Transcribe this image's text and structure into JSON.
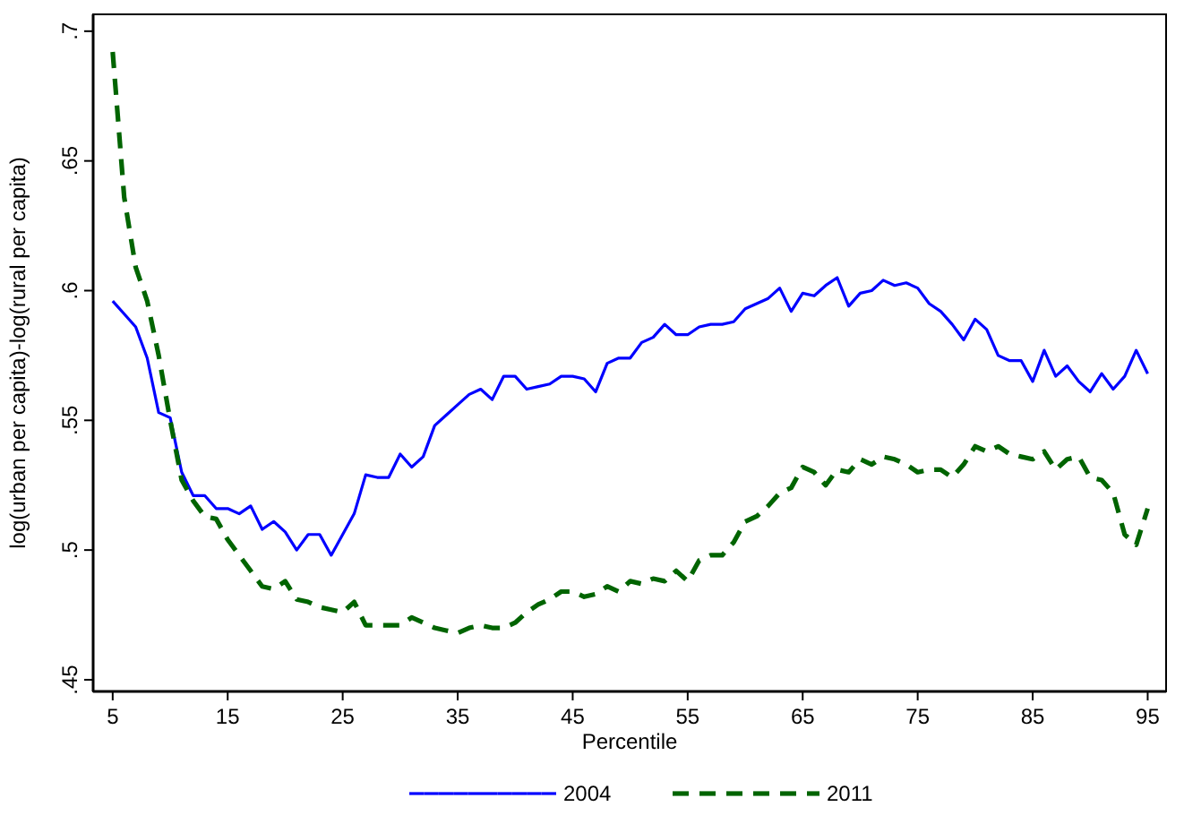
{
  "chart_data": {
    "type": "line",
    "xlabel": "Percentile",
    "ylabel": "log(urban per capita)-log(rural per capita)",
    "x": [
      5,
      6,
      7,
      8,
      9,
      10,
      11,
      12,
      13,
      14,
      15,
      16,
      17,
      18,
      19,
      20,
      21,
      22,
      23,
      24,
      25,
      26,
      27,
      28,
      29,
      30,
      31,
      32,
      33,
      34,
      35,
      36,
      37,
      38,
      39,
      40,
      41,
      42,
      43,
      44,
      45,
      46,
      47,
      48,
      49,
      50,
      51,
      52,
      53,
      54,
      55,
      56,
      57,
      58,
      59,
      60,
      61,
      62,
      63,
      64,
      65,
      66,
      67,
      68,
      69,
      70,
      71,
      72,
      73,
      74,
      75,
      76,
      77,
      78,
      79,
      80,
      81,
      82,
      83,
      84,
      85,
      86,
      87,
      88,
      89,
      90,
      91,
      92,
      93,
      94,
      95
    ],
    "series": [
      {
        "name": "2004",
        "color": "#0000ff",
        "line_style": "solid",
        "values": [
          0.596,
          0.591,
          0.586,
          0.574,
          0.553,
          0.551,
          0.53,
          0.521,
          0.521,
          0.516,
          0.516,
          0.514,
          0.517,
          0.508,
          0.511,
          0.507,
          0.5,
          0.506,
          0.506,
          0.498,
          0.506,
          0.514,
          0.529,
          0.528,
          0.528,
          0.537,
          0.532,
          0.536,
          0.548,
          0.552,
          0.556,
          0.56,
          0.562,
          0.558,
          0.567,
          0.567,
          0.562,
          0.563,
          0.564,
          0.567,
          0.567,
          0.566,
          0.561,
          0.572,
          0.574,
          0.574,
          0.58,
          0.582,
          0.587,
          0.583,
          0.583,
          0.586,
          0.587,
          0.587,
          0.588,
          0.593,
          0.595,
          0.597,
          0.601,
          0.592,
          0.599,
          0.598,
          0.602,
          0.605,
          0.594,
          0.599,
          0.6,
          0.604,
          0.602,
          0.603,
          0.601,
          0.595,
          0.592,
          0.587,
          0.581,
          0.589,
          0.585,
          0.575,
          0.573,
          0.573,
          0.565,
          0.577,
          0.567,
          0.571,
          0.565,
          0.561,
          0.568,
          0.562,
          0.567,
          0.577,
          0.568
        ]
      },
      {
        "name": "2011",
        "color": "#006400",
        "line_style": "dashed",
        "values": [
          0.692,
          0.636,
          0.609,
          0.596,
          0.575,
          0.55,
          0.527,
          0.519,
          0.513,
          0.512,
          0.504,
          0.498,
          0.492,
          0.486,
          0.485,
          0.488,
          0.481,
          0.48,
          0.478,
          0.477,
          0.476,
          0.48,
          0.471,
          0.471,
          0.471,
          0.471,
          0.474,
          0.472,
          0.47,
          0.469,
          0.468,
          0.47,
          0.471,
          0.47,
          0.47,
          0.472,
          0.476,
          0.479,
          0.481,
          0.484,
          0.484,
          0.482,
          0.483,
          0.486,
          0.484,
          0.488,
          0.487,
          0.489,
          0.488,
          0.492,
          0.488,
          0.496,
          0.498,
          0.498,
          0.503,
          0.511,
          0.513,
          0.517,
          0.522,
          0.524,
          0.532,
          0.53,
          0.525,
          0.531,
          0.53,
          0.535,
          0.533,
          0.536,
          0.535,
          0.533,
          0.53,
          0.531,
          0.531,
          0.528,
          0.533,
          0.54,
          0.538,
          0.54,
          0.537,
          0.536,
          0.535,
          0.538,
          0.531,
          0.535,
          0.536,
          0.528,
          0.527,
          0.522,
          0.506,
          0.502,
          0.516
        ]
      }
    ],
    "xlim": [
      3.3,
      96.6
    ],
    "xticks": [
      5,
      15,
      25,
      35,
      45,
      55,
      65,
      75,
      85,
      95
    ],
    "ylim": [
      0.4455,
      0.7065
    ],
    "yticks": [
      {
        "value": 0.45,
        "label": ".45"
      },
      {
        "value": 0.5,
        "label": ".5"
      },
      {
        "value": 0.55,
        "label": ".55"
      },
      {
        "value": 0.6,
        "label": ".6"
      },
      {
        "value": 0.65,
        "label": ".65"
      },
      {
        "value": 0.7,
        "label": ".7"
      }
    ],
    "grid": false,
    "legend": "bottom",
    "marker": "none"
  }
}
